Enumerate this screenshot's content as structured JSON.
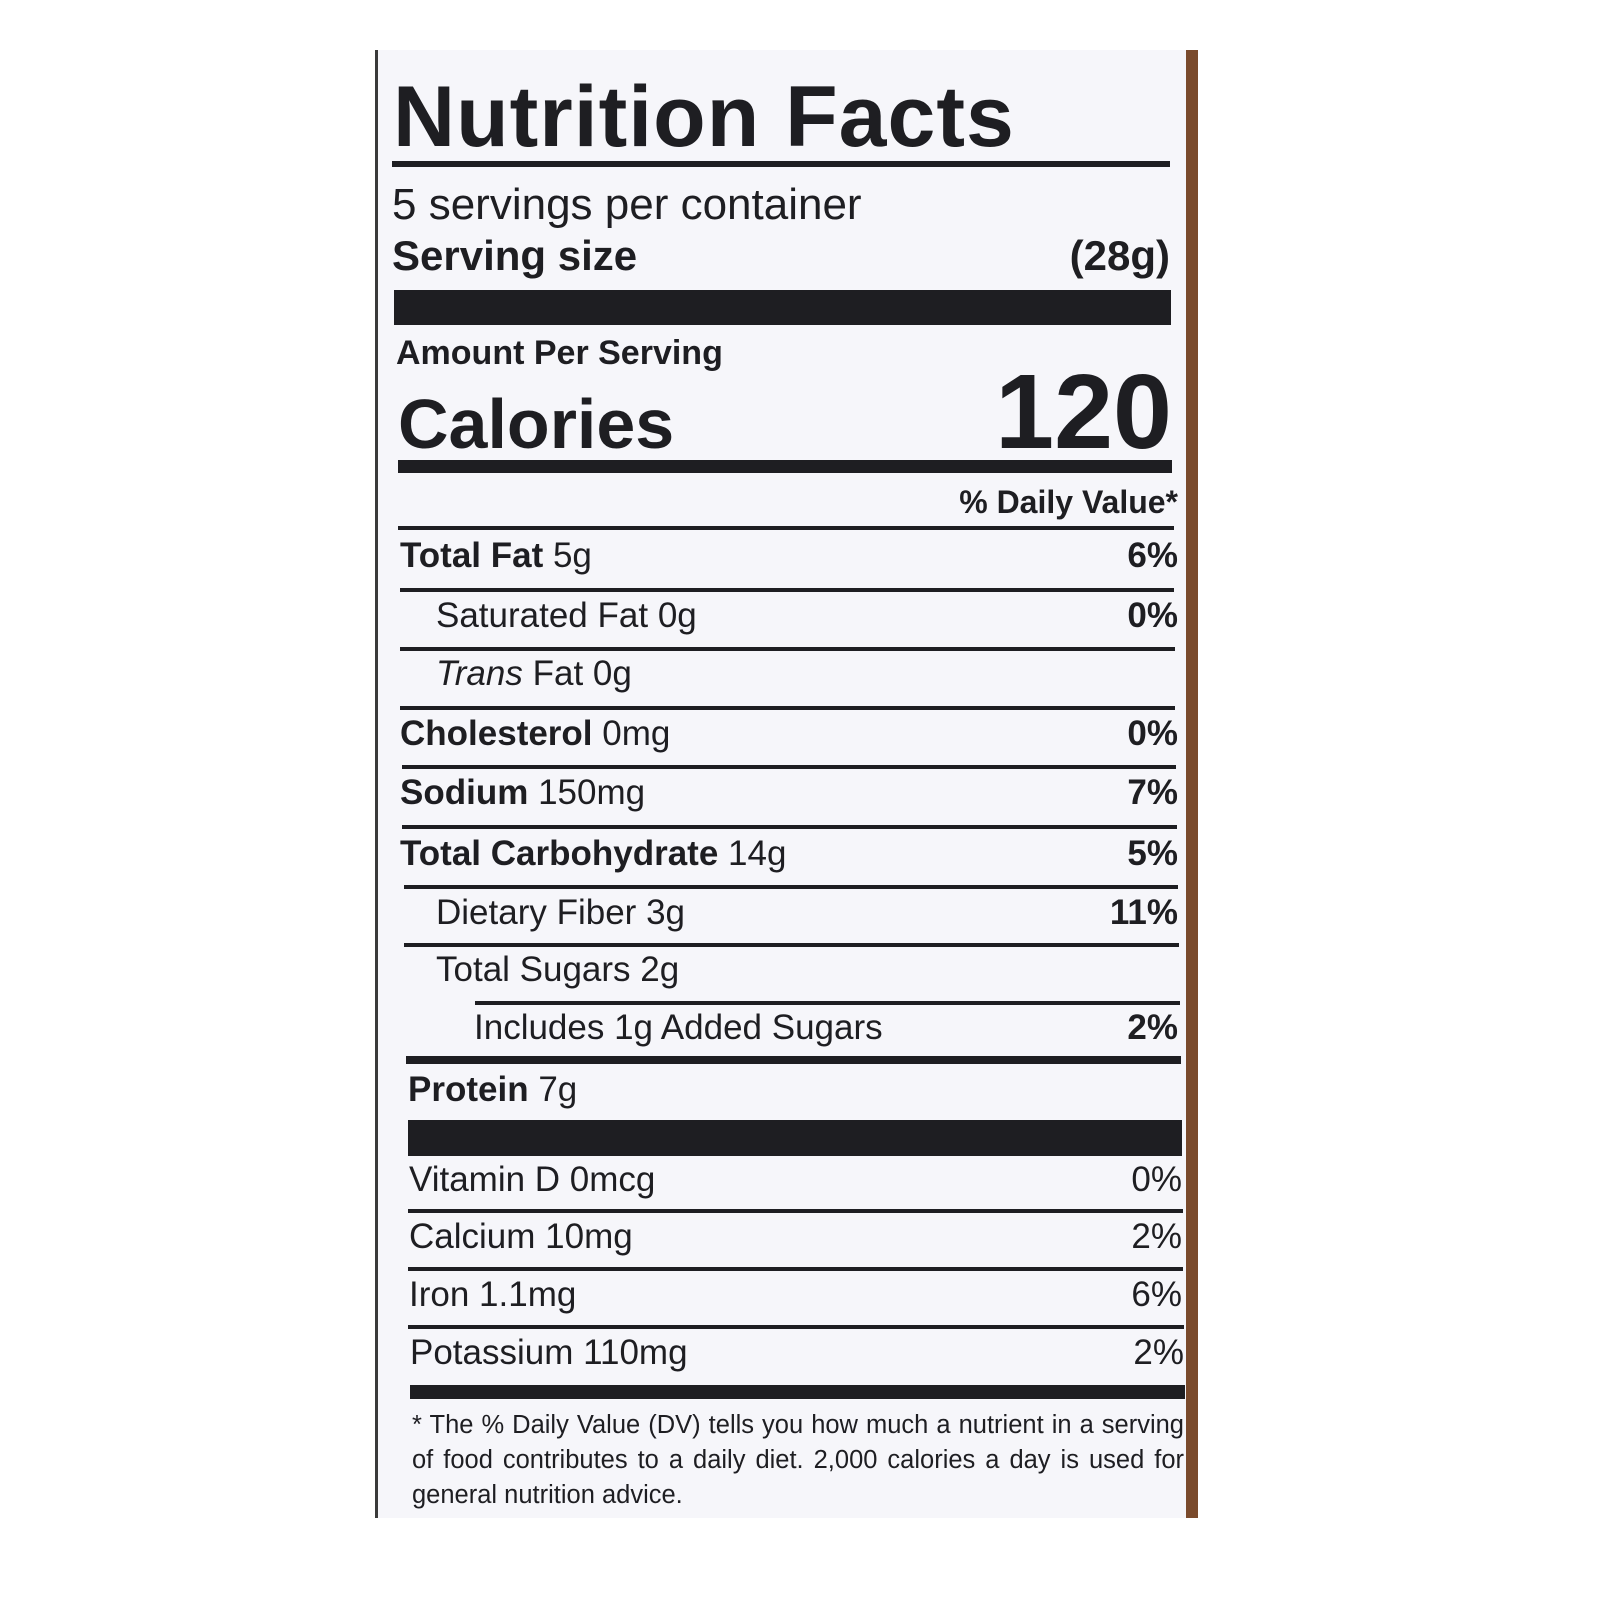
{
  "header": {
    "title": "Nutrition Facts",
    "servings": "5 servings per container",
    "serving_size_label": "Serving size",
    "serving_size_value": "(28g)"
  },
  "calories": {
    "amount_per_serving": "Amount Per Serving",
    "label": "Calories",
    "value": 120
  },
  "daily_value_header": "% Daily Value*",
  "nutrients": [
    {
      "name": "Total Fat",
      "amount": "5g",
      "dv": "6%"
    },
    {
      "name": "Saturated Fat",
      "amount": "0g",
      "dv": "0%"
    },
    {
      "name": "Trans",
      "amount": "Fat 0g"
    },
    {
      "name": "Cholesterol",
      "amount": "0mg",
      "dv": "0%"
    },
    {
      "name": "Sodium",
      "amount": "150mg",
      "dv": "7%"
    },
    {
      "name": "Total Carbohydrate",
      "amount": "14g",
      "dv": "5%"
    },
    {
      "name": "Dietary Fiber",
      "amount": "3g",
      "dv": "11%"
    },
    {
      "name": "Total Sugars",
      "amount": "2g"
    },
    {
      "name": "Includes 1g Added Sugars",
      "dv": "2%"
    },
    {
      "name": "Protein",
      "amount": "7g"
    }
  ],
  "vitamins": [
    {
      "name": "Vitamin D 0mcg",
      "dv": "0%"
    },
    {
      "name": "Calcium 10mg",
      "dv": "2%"
    },
    {
      "name": "Iron 1.1mg",
      "dv": "6%"
    },
    {
      "name": "Potassium 110mg",
      "dv": "2%"
    }
  ],
  "footnote": "* The % Daily Value (DV) tells you how much a nutrient in a serving of food contributes to a daily diet. 2,000 calories a day is used for general nutrition advice."
}
